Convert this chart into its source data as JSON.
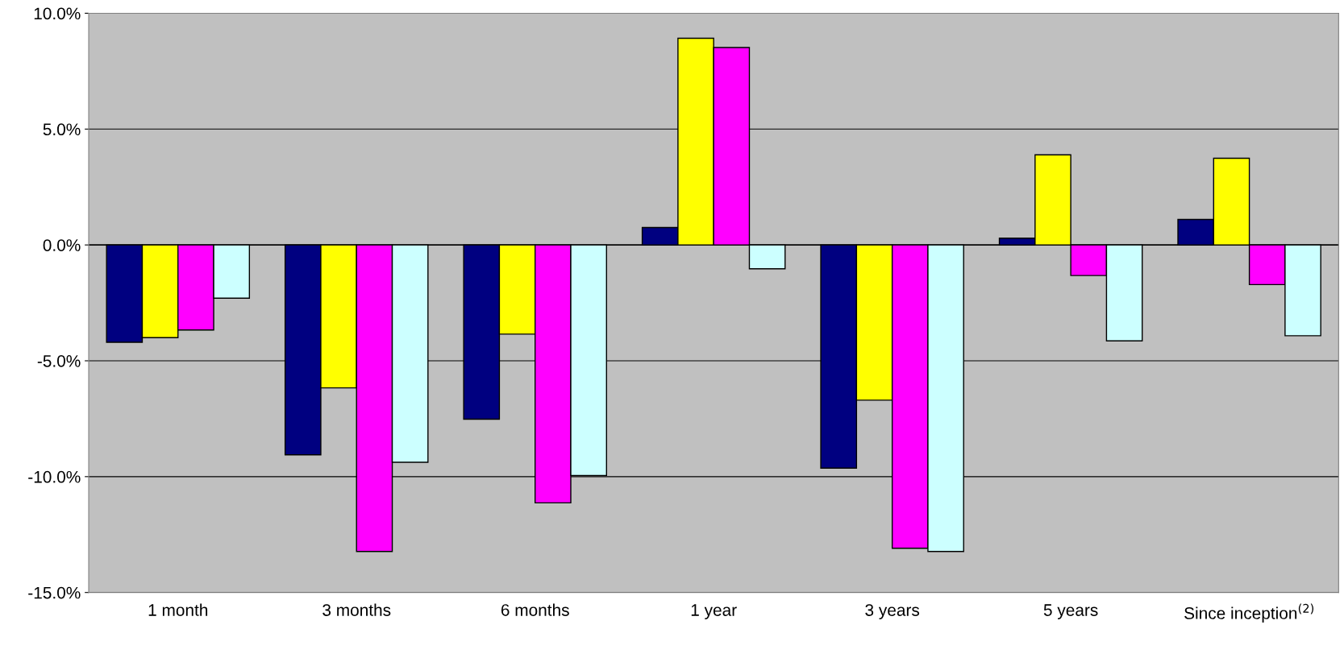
{
  "chart_data": {
    "type": "bar",
    "categories": [
      "1 month",
      "3 months",
      "6 months",
      "1 year",
      "3 years",
      "5 years",
      "Since inception$^{(2)}$"
    ],
    "series": [
      {
        "color": "#000080",
        "values": [
          -4.2,
          -9.06,
          -7.52,
          0.75,
          -9.63,
          0.29,
          1.1
        ]
      },
      {
        "color": "#ffff00",
        "values": [
          -4.0,
          -6.17,
          -3.85,
          8.92,
          -6.7,
          3.89,
          3.74
        ]
      },
      {
        "color": "#ff00ff",
        "values": [
          -3.67,
          -13.23,
          -11.13,
          8.52,
          -13.09,
          -1.32,
          -1.71
        ]
      },
      {
        "color": "#ccffff",
        "values": [
          -2.3,
          -9.38,
          -9.95,
          -1.03,
          -13.23,
          -4.14,
          -3.92
        ]
      }
    ],
    "ylim": [
      -15,
      10
    ],
    "yticks": [
      {
        "value": -15,
        "label": "-15.0%"
      },
      {
        "value": -10,
        "label": "-10.0%"
      },
      {
        "value": -5,
        "label": "-5.0%"
      },
      {
        "value": 0,
        "label": "0.0%"
      },
      {
        "value": 5,
        "label": "5.0%"
      },
      {
        "value": 10,
        "label": "10.0%"
      }
    ],
    "grid": "y"
  }
}
